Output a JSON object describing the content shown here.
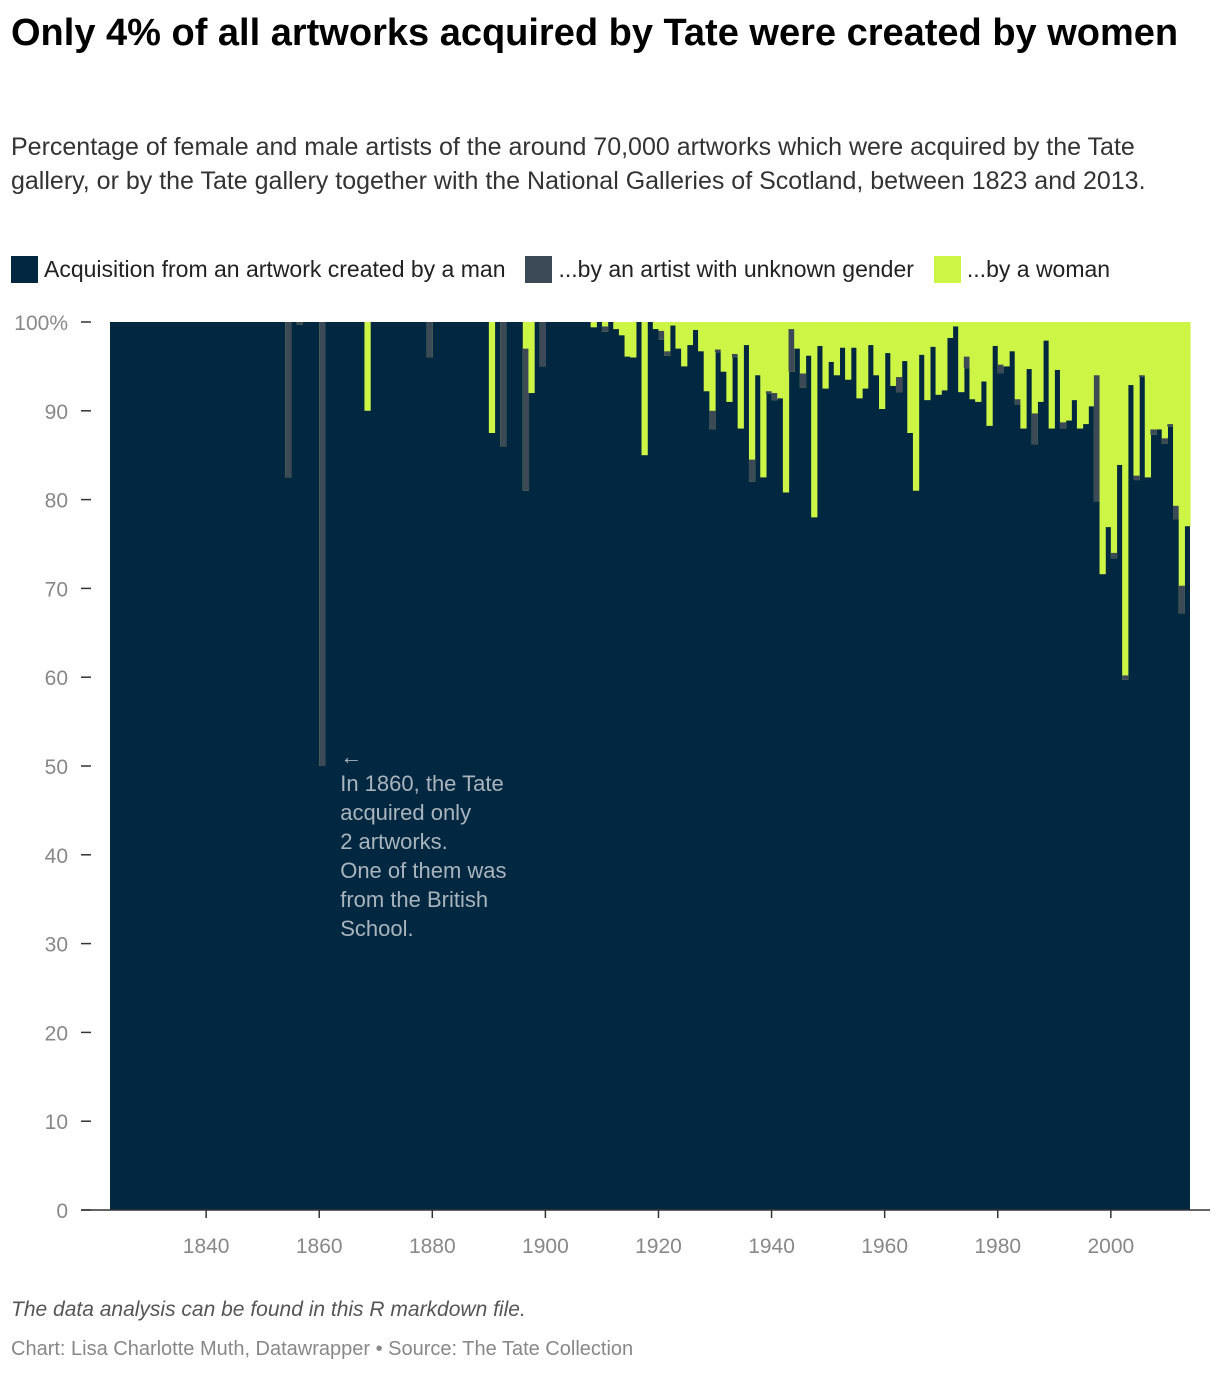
{
  "title": "Only 4% of all artworks acquired by Tate were created by women",
  "subtitle": "Percentage of female and male artists of the around 70,000 artworks which were acquired by the Tate gallery, or by the Tate gallery together with the National Galleries of Scotland, between 1823 and 2013.",
  "legend": [
    {
      "label": "Acquisition from an artwork created by a man",
      "color": "#022841"
    },
    {
      "label": "...by an artist with unknown gender",
      "color": "#3b4a56"
    },
    {
      "label": "...by a woman",
      "color": "#cdf545"
    }
  ],
  "annotation": {
    "arrow": "←",
    "lines": [
      "In 1860, the Tate",
      "acquired only",
      "2 artworks.",
      "One of them was",
      "from the British",
      "School."
    ]
  },
  "notes": "The data analysis can be found in this R markdown file.",
  "byline": "Chart: Lisa Charlotte Muth, Datawrapper • Source: The Tate Collection",
  "chart_data": {
    "type": "area",
    "stacked": true,
    "x_range": [
      1823,
      2013
    ],
    "ylim": [
      0,
      100
    ],
    "y_ticks": [
      0,
      10,
      20,
      30,
      40,
      50,
      60,
      70,
      80,
      90,
      100
    ],
    "y_tick_labels": [
      "0",
      "10",
      "20",
      "30",
      "40",
      "50",
      "60",
      "70",
      "80",
      "90",
      "100%"
    ],
    "x_ticks": [
      1840,
      1860,
      1880,
      1900,
      1920,
      1940,
      1960,
      1980,
      2000
    ],
    "grid": false,
    "legend_position": "top",
    "series_order": [
      "man",
      "unknown",
      "woman"
    ],
    "years": [
      {
        "year": 1854,
        "man": 82.5,
        "unknown": 17.5,
        "woman": 0
      },
      {
        "year": 1856,
        "man": 99.7,
        "unknown": 0.3,
        "woman": 0
      },
      {
        "year": 1860,
        "man": 50,
        "unknown": 50,
        "woman": 0
      },
      {
        "year": 1868,
        "man": 90,
        "unknown": 0,
        "woman": 10
      },
      {
        "year": 1879,
        "man": 96,
        "unknown": 4,
        "woman": 0
      },
      {
        "year": 1890,
        "man": 87.5,
        "unknown": 0,
        "woman": 12.5
      },
      {
        "year": 1892,
        "man": 86,
        "unknown": 14,
        "woman": 0
      },
      {
        "year": 1896,
        "man": 81,
        "unknown": 16,
        "woman": 3
      },
      {
        "year": 1897,
        "man": 92,
        "unknown": 0,
        "woman": 8
      },
      {
        "year": 1899,
        "man": 95,
        "unknown": 5,
        "woman": 0
      },
      {
        "year": 1908,
        "man": 99.4,
        "unknown": 0,
        "woman": 0.6
      },
      {
        "year": 1910,
        "man": 98.9,
        "unknown": 0.6,
        "woman": 0.5
      },
      {
        "year": 1912,
        "man": 99.2,
        "unknown": 0,
        "woman": 0.8
      },
      {
        "year": 1913,
        "man": 98.5,
        "unknown": 0,
        "woman": 1.5
      },
      {
        "year": 1914,
        "man": 96.1,
        "unknown": 0,
        "woman": 3.9
      },
      {
        "year": 1915,
        "man": 96,
        "unknown": 0,
        "woman": 4
      },
      {
        "year": 1917,
        "man": 85,
        "unknown": 0,
        "woman": 15
      },
      {
        "year": 1919,
        "man": 99.2,
        "unknown": 0,
        "woman": 0.8
      },
      {
        "year": 1920,
        "man": 98,
        "unknown": 1,
        "woman": 1
      },
      {
        "year": 1921,
        "man": 96.2,
        "unknown": 0.5,
        "woman": 3.3
      },
      {
        "year": 1922,
        "man": 99.6,
        "unknown": 0,
        "woman": 0.4
      },
      {
        "year": 1923,
        "man": 97,
        "unknown": 0,
        "woman": 3
      },
      {
        "year": 1924,
        "man": 95,
        "unknown": 0,
        "woman": 5
      },
      {
        "year": 1925,
        "man": 97.4,
        "unknown": 0,
        "woman": 2.6
      },
      {
        "year": 1926,
        "man": 99.1,
        "unknown": 0,
        "woman": 0.9
      },
      {
        "year": 1927,
        "man": 96.7,
        "unknown": 0,
        "woman": 3.3
      },
      {
        "year": 1928,
        "man": 92.2,
        "unknown": 0,
        "woman": 7.8
      },
      {
        "year": 1929,
        "man": 87.9,
        "unknown": 2.1,
        "woman": 10
      },
      {
        "year": 1930,
        "man": 96.6,
        "unknown": 0.3,
        "woman": 3.1
      },
      {
        "year": 1931,
        "man": 94.4,
        "unknown": 0,
        "woman": 5.6
      },
      {
        "year": 1932,
        "man": 91,
        "unknown": 0,
        "woman": 9
      },
      {
        "year": 1933,
        "man": 96,
        "unknown": 0.4,
        "woman": 3.6
      },
      {
        "year": 1934,
        "man": 88,
        "unknown": 0,
        "woman": 12
      },
      {
        "year": 1935,
        "man": 97.4,
        "unknown": 0,
        "woman": 2.6
      },
      {
        "year": 1936,
        "man": 82,
        "unknown": 2.5,
        "woman": 15.5
      },
      {
        "year": 1937,
        "man": 94,
        "unknown": 0,
        "woman": 6
      },
      {
        "year": 1938,
        "man": 82.5,
        "unknown": 0,
        "woman": 17.5
      },
      {
        "year": 1939,
        "man": 91.9,
        "unknown": 0.3,
        "woman": 7.8
      },
      {
        "year": 1940,
        "man": 91.2,
        "unknown": 0.8,
        "woman": 8
      },
      {
        "year": 1941,
        "man": 91.4,
        "unknown": 0,
        "woman": 8.6
      },
      {
        "year": 1942,
        "man": 80.8,
        "unknown": 0,
        "woman": 19.2
      },
      {
        "year": 1943,
        "man": 94.4,
        "unknown": 4.8,
        "woman": 0.8
      },
      {
        "year": 1944,
        "man": 97,
        "unknown": 0,
        "woman": 3
      },
      {
        "year": 1945,
        "man": 92.6,
        "unknown": 1.6,
        "woman": 5.8
      },
      {
        "year": 1946,
        "man": 96.2,
        "unknown": 0,
        "woman": 3.8
      },
      {
        "year": 1947,
        "man": 78,
        "unknown": 0,
        "woman": 22
      },
      {
        "year": 1948,
        "man": 97.3,
        "unknown": 0,
        "woman": 2.7
      },
      {
        "year": 1949,
        "man": 92.5,
        "unknown": 0,
        "woman": 7.5
      },
      {
        "year": 1950,
        "man": 95.5,
        "unknown": 0,
        "woman": 4.5
      },
      {
        "year": 1951,
        "man": 94,
        "unknown": 0,
        "woman": 6
      },
      {
        "year": 1952,
        "man": 97.1,
        "unknown": 0,
        "woman": 2.9
      },
      {
        "year": 1953,
        "man": 93.5,
        "unknown": 0,
        "woman": 6.5
      },
      {
        "year": 1954,
        "man": 97.1,
        "unknown": 0,
        "woman": 2.9
      },
      {
        "year": 1955,
        "man": 91.4,
        "unknown": 0,
        "woman": 8.6
      },
      {
        "year": 1956,
        "man": 92.5,
        "unknown": 0,
        "woman": 7.5
      },
      {
        "year": 1957,
        "man": 97.4,
        "unknown": 0,
        "woman": 2.6
      },
      {
        "year": 1958,
        "man": 94,
        "unknown": 0,
        "woman": 6
      },
      {
        "year": 1959,
        "man": 90.2,
        "unknown": 0,
        "woman": 9.8
      },
      {
        "year": 1960,
        "man": 96.5,
        "unknown": 0,
        "woman": 3.5
      },
      {
        "year": 1961,
        "man": 92.8,
        "unknown": 0,
        "woman": 7.2
      },
      {
        "year": 1962,
        "man": 92.1,
        "unknown": 1.7,
        "woman": 6.2
      },
      {
        "year": 1963,
        "man": 95.6,
        "unknown": 0,
        "woman": 4.4
      },
      {
        "year": 1964,
        "man": 87.5,
        "unknown": 0,
        "woman": 12.5
      },
      {
        "year": 1965,
        "man": 81,
        "unknown": 0,
        "woman": 19
      },
      {
        "year": 1966,
        "man": 96.3,
        "unknown": 0,
        "woman": 3.7
      },
      {
        "year": 1967,
        "man": 91.2,
        "unknown": 0,
        "woman": 8.8
      },
      {
        "year": 1968,
        "man": 97.2,
        "unknown": 0,
        "woman": 2.8
      },
      {
        "year": 1969,
        "man": 91.8,
        "unknown": 0,
        "woman": 8.2
      },
      {
        "year": 1970,
        "man": 92.3,
        "unknown": 0,
        "woman": 7.7
      },
      {
        "year": 1971,
        "man": 98.2,
        "unknown": 0,
        "woman": 1.8
      },
      {
        "year": 1972,
        "man": 99.5,
        "unknown": 0,
        "woman": 0.5
      },
      {
        "year": 1973,
        "man": 92.1,
        "unknown": 0,
        "woman": 7.9
      },
      {
        "year": 1974,
        "man": 94.8,
        "unknown": 1.3,
        "woman": 3.9
      },
      {
        "year": 1975,
        "man": 91.3,
        "unknown": 0,
        "woman": 8.7
      },
      {
        "year": 1976,
        "man": 91,
        "unknown": 0,
        "woman": 9
      },
      {
        "year": 1977,
        "man": 93.3,
        "unknown": 0,
        "woman": 6.7
      },
      {
        "year": 1978,
        "man": 88.3,
        "unknown": 0,
        "woman": 11.7
      },
      {
        "year": 1979,
        "man": 97.3,
        "unknown": 0,
        "woman": 2.7
      },
      {
        "year": 1980,
        "man": 94.2,
        "unknown": 1,
        "woman": 4.8
      },
      {
        "year": 1981,
        "man": 95,
        "unknown": 0,
        "woman": 5
      },
      {
        "year": 1982,
        "man": 96.7,
        "unknown": 0,
        "woman": 3.3
      },
      {
        "year": 1983,
        "man": 90.7,
        "unknown": 0.6,
        "woman": 8.7
      },
      {
        "year": 1984,
        "man": 88,
        "unknown": 0,
        "woman": 12
      },
      {
        "year": 1985,
        "man": 94.7,
        "unknown": 0,
        "woman": 5.3
      },
      {
        "year": 1986,
        "man": 86.2,
        "unknown": 3.5,
        "woman": 10.3
      },
      {
        "year": 1987,
        "man": 91,
        "unknown": 0,
        "woman": 9
      },
      {
        "year": 1988,
        "man": 97.9,
        "unknown": 0,
        "woman": 2.1
      },
      {
        "year": 1989,
        "man": 88,
        "unknown": 0,
        "woman": 12
      },
      {
        "year": 1990,
        "man": 94.6,
        "unknown": 0,
        "woman": 5.4
      },
      {
        "year": 1991,
        "man": 88,
        "unknown": 0.7,
        "woman": 11.3
      },
      {
        "year": 1992,
        "man": 88.9,
        "unknown": 0,
        "woman": 11.1
      },
      {
        "year": 1993,
        "man": 91.2,
        "unknown": 0,
        "woman": 8.8
      },
      {
        "year": 1994,
        "man": 88,
        "unknown": 0,
        "woman": 12
      },
      {
        "year": 1995,
        "man": 88.5,
        "unknown": 0,
        "woman": 11.5
      },
      {
        "year": 1996,
        "man": 90.5,
        "unknown": 0,
        "woman": 9.5
      },
      {
        "year": 1997,
        "man": 79.8,
        "unknown": 14.2,
        "woman": 6
      },
      {
        "year": 1998,
        "man": 71.6,
        "unknown": 0,
        "woman": 28.4
      },
      {
        "year": 1999,
        "man": 76.9,
        "unknown": 0,
        "woman": 23.1
      },
      {
        "year": 2000,
        "man": 73.4,
        "unknown": 0.6,
        "woman": 26
      },
      {
        "year": 2001,
        "man": 83.9,
        "unknown": 0,
        "woman": 16.1
      },
      {
        "year": 2002,
        "man": 59.7,
        "unknown": 0.5,
        "woman": 39.8
      },
      {
        "year": 2003,
        "man": 92.9,
        "unknown": 0,
        "woman": 7.1
      },
      {
        "year": 2004,
        "man": 82.2,
        "unknown": 0.5,
        "woman": 17.3
      },
      {
        "year": 2005,
        "man": 93.8,
        "unknown": 0.2,
        "woman": 6
      },
      {
        "year": 2006,
        "man": 82.5,
        "unknown": 0,
        "woman": 17.5
      },
      {
        "year": 2007,
        "man": 87.3,
        "unknown": 0.6,
        "woman": 12.1
      },
      {
        "year": 2008,
        "man": 87.9,
        "unknown": 0,
        "woman": 12.1
      },
      {
        "year": 2009,
        "man": 86.3,
        "unknown": 0.6,
        "woman": 13.1
      },
      {
        "year": 2010,
        "man": 88.2,
        "unknown": 0.3,
        "woman": 11.5
      },
      {
        "year": 2011,
        "man": 77.8,
        "unknown": 1.5,
        "woman": 20.7
      },
      {
        "year": 2012,
        "man": 67.2,
        "unknown": 3.1,
        "woman": 29.7
      },
      {
        "year": 2013,
        "man": 77,
        "unknown": 0,
        "woman": 23
      }
    ]
  }
}
